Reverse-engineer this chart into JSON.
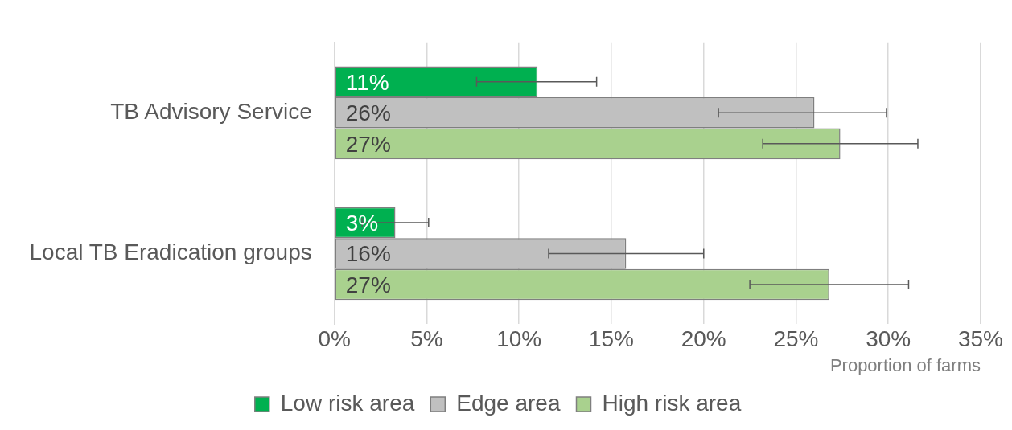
{
  "chart_data": {
    "type": "bar",
    "orientation": "horizontal",
    "categories": [
      "TB Advisory Service",
      "Local TB Eradication groups"
    ],
    "series": [
      {
        "name": "Low risk area",
        "color": "#00b050",
        "values": [
          11,
          3.3
        ],
        "value_labels": [
          "11%",
          "3%"
        ],
        "errors": [
          [
            7.7,
            14.2
          ],
          [
            1.5,
            5.1
          ]
        ]
      },
      {
        "name": "Edge area",
        "color": "#c0c0c0",
        "values": [
          26,
          15.8
        ],
        "value_labels": [
          "26%",
          "16%"
        ],
        "errors": [
          [
            20.8,
            29.9
          ],
          [
            11.6,
            20
          ]
        ]
      },
      {
        "name": "High risk area",
        "color": "#a9d18e",
        "values": [
          27.4,
          26.8
        ],
        "value_labels": [
          "27%",
          "27%"
        ],
        "errors": [
          [
            23.2,
            31.6
          ],
          [
            22.5,
            31.1
          ]
        ]
      }
    ],
    "xlabel": "Proportion of farms",
    "xlim": [
      0,
      35
    ],
    "xticks": [
      {
        "value": 0,
        "label": "0%"
      },
      {
        "value": 5,
        "label": "5%"
      },
      {
        "value": 10,
        "label": "10%"
      },
      {
        "value": 15,
        "label": "15%"
      },
      {
        "value": 20,
        "label": "20%"
      },
      {
        "value": 25,
        "label": "25%"
      },
      {
        "value": 30,
        "label": "30%"
      },
      {
        "value": 35,
        "label": "35%"
      }
    ],
    "grid": "x",
    "legend": "bottom"
  }
}
